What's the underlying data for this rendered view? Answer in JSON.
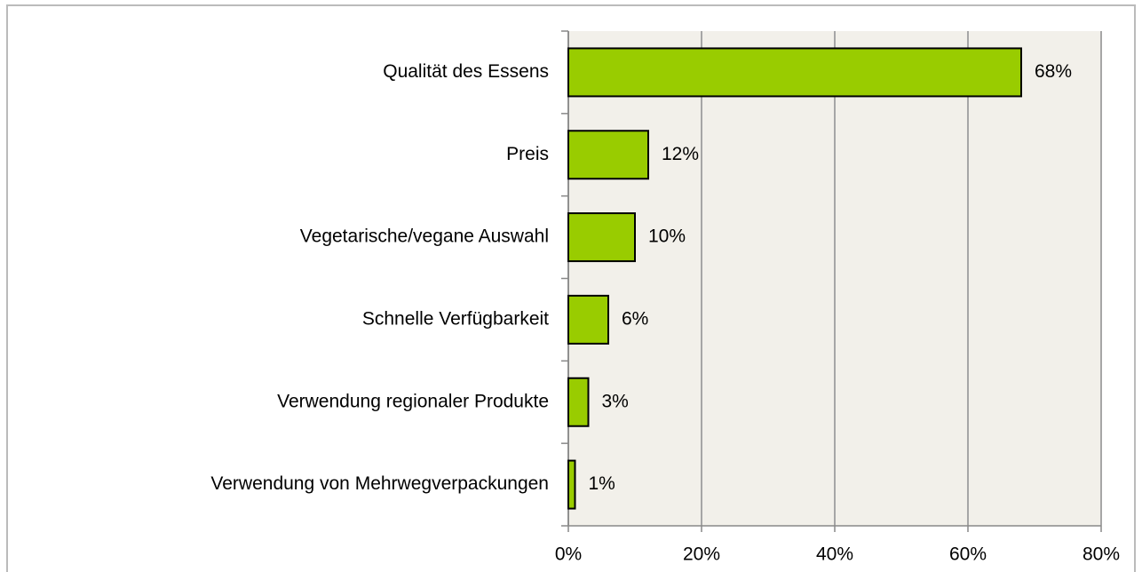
{
  "chart_data": {
    "type": "bar",
    "orientation": "horizontal",
    "categories": [
      "Qualität des Essens",
      "Preis",
      "Vegetarische/vegane Auswahl",
      "Schnelle Verfügbarkeit",
      "Verwendung regionaler Produkte",
      "Verwendung von Mehrwegverpackungen"
    ],
    "values": [
      68,
      12,
      10,
      6,
      3,
      1
    ],
    "value_labels": [
      "68%",
      "12%",
      "10%",
      "6%",
      "3%",
      "1%"
    ],
    "color": "#99cc00",
    "xlim": [
      0,
      80
    ],
    "xticks": [
      {
        "value": 0,
        "label": "0%"
      },
      {
        "value": 20,
        "label": "20%"
      },
      {
        "value": 40,
        "label": "40%"
      },
      {
        "value": 60,
        "label": "60%"
      },
      {
        "value": 80,
        "label": "80%"
      }
    ],
    "grid": true
  }
}
